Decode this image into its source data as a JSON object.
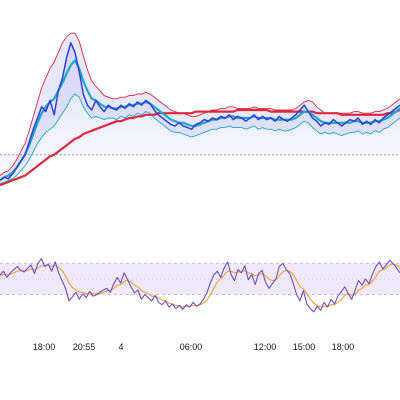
{
  "chart_data": [
    {
      "type": "line",
      "panel": "price",
      "grid": false,
      "legend": "none",
      "colors": {
        "price": "#2e3fd8",
        "fast_ma": "#1ea7c8",
        "slow_ma": "#e0283c",
        "band_upper": "#e0283c",
        "band_lower": "#1ea7c8",
        "band_fill": "#c9cdf5",
        "baseline": "#8a93e6"
      },
      "ylim": [
        0,
        100
      ],
      "baseline": 22,
      "series": [
        {
          "role": "price",
          "values": [
            6,
            8,
            7,
            10,
            14,
            18,
            22,
            30,
            38,
            45,
            52,
            49,
            56,
            47,
            62,
            70,
            83,
            92,
            86,
            74,
            60,
            53,
            50,
            56,
            52,
            49,
            53,
            51,
            50,
            53,
            51,
            54,
            52,
            55,
            53,
            56,
            54,
            50,
            47,
            45,
            43,
            41,
            40,
            42,
            40,
            39,
            38,
            41,
            42,
            44,
            43,
            45,
            44,
            46,
            45,
            47,
            44,
            46,
            45,
            43,
            45,
            47,
            44,
            46,
            44,
            45,
            43,
            46,
            44,
            43,
            45,
            47,
            50,
            53,
            49,
            45,
            43,
            40,
            42,
            41,
            44,
            42,
            40,
            42,
            44,
            43,
            45,
            41,
            43,
            41,
            44,
            42,
            45,
            47,
            49,
            51,
            53
          ]
        },
        {
          "role": "fast_ma",
          "values": [
            6,
            8,
            9,
            11,
            14,
            18,
            22,
            28,
            35,
            42,
            48,
            52,
            55,
            57,
            62,
            67,
            73,
            78,
            81,
            76,
            68,
            62,
            57,
            56,
            54,
            52,
            52,
            51,
            51,
            52,
            52,
            53,
            53,
            54,
            54,
            55,
            54,
            52,
            50,
            48,
            46,
            44,
            43,
            42,
            42,
            41,
            40,
            40,
            41,
            42,
            43,
            44,
            44,
            45,
            45,
            46,
            46,
            45,
            45,
            45,
            45,
            46,
            45,
            45,
            45,
            45,
            44,
            44,
            44,
            44,
            44,
            45,
            47,
            49,
            49,
            47,
            45,
            43,
            42,
            42,
            42,
            42,
            42,
            42,
            42,
            43,
            43,
            42,
            42,
            42,
            43,
            43,
            44,
            45,
            47,
            49,
            51
          ]
        },
        {
          "role": "slow_ma",
          "values": [
            3,
            4,
            5,
            6,
            7,
            8,
            9,
            11,
            13,
            15,
            17,
            19,
            21,
            22,
            24,
            26,
            28,
            30,
            32,
            33,
            35,
            36,
            37,
            38,
            39,
            40,
            41,
            42,
            43,
            43,
            44,
            45,
            45,
            46,
            46,
            47,
            47,
            47,
            48,
            48,
            48,
            48,
            48,
            48,
            48,
            48,
            48,
            49,
            49,
            49,
            49,
            49,
            49,
            49,
            49,
            49,
            49,
            50,
            50,
            50,
            50,
            50,
            50,
            50,
            50,
            49,
            49,
            49,
            49,
            49,
            49,
            49,
            49,
            49,
            49,
            49,
            48,
            48,
            48,
            48,
            48,
            48,
            47,
            47,
            47,
            47,
            47,
            47,
            47,
            47,
            47,
            47,
            47,
            48,
            48,
            49,
            50
          ]
        },
        {
          "role": "band_upper",
          "values": [
            9,
            11,
            12,
            15,
            19,
            24,
            29,
            37,
            46,
            55,
            64,
            70,
            76,
            80,
            86,
            92,
            96,
            98,
            98,
            93,
            84,
            75,
            68,
            65,
            62,
            59,
            58,
            57,
            57,
            58,
            58,
            59,
            59,
            60,
            60,
            61,
            60,
            58,
            56,
            54,
            52,
            50,
            49,
            48,
            48,
            47,
            46,
            46,
            47,
            48,
            49,
            50,
            50,
            51,
            51,
            52,
            52,
            51,
            51,
            51,
            51,
            52,
            51,
            51,
            51,
            51,
            50,
            50,
            50,
            50,
            50,
            51,
            53,
            55,
            56,
            55,
            52,
            50,
            48,
            48,
            48,
            48,
            48,
            48,
            48,
            49,
            49,
            48,
            48,
            48,
            49,
            49,
            50,
            51,
            53,
            55,
            57
          ]
        },
        {
          "role": "band_lower",
          "values": [
            4,
            5,
            6,
            7,
            9,
            12,
            15,
            19,
            24,
            29,
            33,
            36,
            38,
            40,
            44,
            48,
            52,
            57,
            60,
            58,
            52,
            48,
            45,
            46,
            45,
            44,
            45,
            45,
            44,
            46,
            45,
            47,
            46,
            48,
            47,
            49,
            48,
            45,
            43,
            41,
            39,
            37,
            36,
            36,
            35,
            34,
            33,
            34,
            35,
            36,
            37,
            38,
            38,
            39,
            39,
            40,
            39,
            39,
            39,
            38,
            39,
            40,
            38,
            39,
            38,
            38,
            37,
            38,
            37,
            37,
            38,
            39,
            41,
            43,
            42,
            39,
            37,
            35,
            36,
            35,
            36,
            35,
            34,
            35,
            36,
            36,
            37,
            35,
            36,
            35,
            37,
            36,
            38,
            39,
            41,
            43,
            45
          ]
        }
      ]
    },
    {
      "type": "line",
      "panel": "oscillator",
      "grid": false,
      "legend": "none",
      "colors": {
        "oscillator": "#6a4fc8",
        "signal": "#f0a030",
        "band_fill": "#efe9fb",
        "band_border": "#c9b8ef",
        "midline": "#c9b8ef"
      },
      "ylim": [
        0,
        100
      ],
      "band": [
        30,
        70
      ],
      "midline": 50,
      "series": [
        {
          "role": "oscillator",
          "values": [
            55,
            60,
            52,
            58,
            62,
            66,
            61,
            59,
            64,
            68,
            57,
            70,
            76,
            66,
            69,
            60,
            72,
            58,
            48,
            38,
            22,
            27,
            33,
            24,
            31,
            26,
            34,
            28,
            30,
            33,
            36,
            38,
            33,
            44,
            52,
            45,
            58,
            49,
            40,
            32,
            36,
            24,
            30,
            26,
            22,
            29,
            20,
            17,
            22,
            14,
            18,
            12,
            16,
            11,
            17,
            14,
            20,
            15,
            18,
            24,
            32,
            45,
            55,
            60,
            52,
            64,
            72,
            56,
            48,
            62,
            58,
            67,
            49,
            56,
            43,
            57,
            61,
            46,
            38,
            44,
            50,
            66,
            70,
            62,
            57,
            45,
            30,
            22,
            35,
            18,
            12,
            8,
            15,
            10,
            20,
            14,
            24,
            18,
            28,
            34,
            40,
            31,
            24,
            36,
            48,
            42,
            50,
            44,
            56,
            66,
            72,
            63,
            68,
            74,
            70,
            64,
            58
          ]
        },
        {
          "role": "signal",
          "values": [
            54,
            56,
            55,
            56,
            58,
            60,
            61,
            60,
            61,
            63,
            62,
            64,
            67,
            67,
            68,
            66,
            67,
            65,
            61,
            54,
            45,
            39,
            36,
            33,
            33,
            31,
            32,
            31,
            31,
            31,
            33,
            35,
            35,
            38,
            42,
            43,
            47,
            48,
            46,
            42,
            40,
            35,
            33,
            31,
            28,
            28,
            26,
            23,
            22,
            19,
            18,
            16,
            16,
            14,
            15,
            15,
            16,
            16,
            17,
            19,
            23,
            30,
            38,
            46,
            50,
            55,
            60,
            60,
            58,
            59,
            59,
            61,
            58,
            57,
            54,
            55,
            57,
            54,
            50,
            48,
            49,
            54,
            59,
            61,
            60,
            56,
            48,
            40,
            37,
            31,
            24,
            19,
            16,
            14,
            15,
            15,
            17,
            17,
            20,
            24,
            29,
            31,
            29,
            31,
            36,
            38,
            42,
            43,
            47,
            53,
            60,
            62,
            64,
            68,
            69,
            68,
            65
          ]
        }
      ]
    }
  ],
  "x_axis": {
    "tick_labels": [
      "18:00",
      "20:55",
      "4",
      "06:00",
      "12:00",
      "15:00",
      "18:00"
    ]
  }
}
